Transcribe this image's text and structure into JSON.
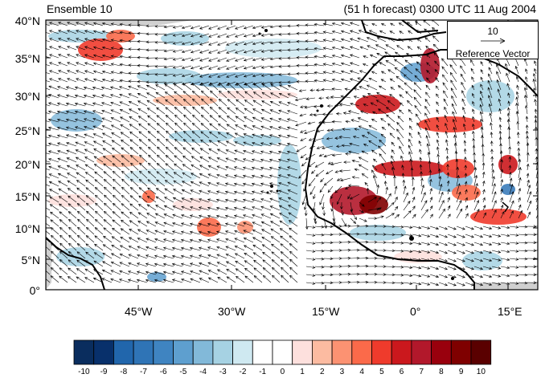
{
  "header": {
    "ensemble_title": "Ensemble 10",
    "forecast_title": "(51 h forecast) 0300 UTC 11 Aug 2004"
  },
  "map": {
    "lat_labels": [
      "40°N",
      "35°N",
      "30°N",
      "25°N",
      "20°N",
      "15°N",
      "10°N",
      "5°N",
      "0°"
    ],
    "lon_labels": [
      "45°W",
      "30°W",
      "15°W",
      "0°",
      "15°E"
    ],
    "reference_vector": {
      "magnitude": "10",
      "label": "Reference Vector"
    },
    "colors": {
      "land_outline": "#000000",
      "missing": "#c8c8c8",
      "vector": "#000000"
    }
  },
  "colorbar": {
    "labels": [
      "-10",
      "-9",
      "-8",
      "-7",
      "-6",
      "-5",
      "-4",
      "-3",
      "-2",
      "-1",
      "0",
      "1",
      "2",
      "3",
      "4",
      "5",
      "6",
      "7",
      "8",
      "9",
      "10"
    ],
    "colors": [
      "#0a2d5e",
      "#08306b",
      "#2166ac",
      "#2f74b6",
      "#3f84c1",
      "#5e9fcf",
      "#82b9d9",
      "#a6d2e3",
      "#cfe9f1",
      "#ffffff",
      "#ffffff",
      "#fde0dd",
      "#fcbba1",
      "#fc9272",
      "#fb6a4a",
      "#ef3b2c",
      "#cb181d",
      "#b2182b",
      "#99000d",
      "#7f0000",
      "#5a0000"
    ]
  }
}
